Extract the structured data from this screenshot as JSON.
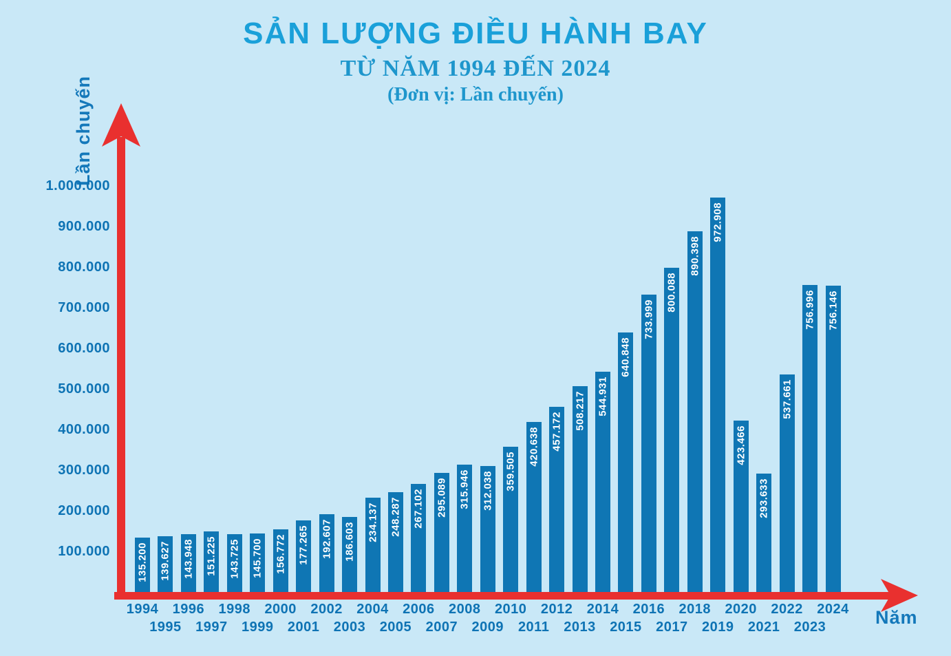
{
  "header": {
    "title": "SẢN LƯỢNG ĐIỀU HÀNH BAY",
    "subtitle": "TỪ NĂM 1994 ĐẾN 2024",
    "unit": "(Đơn vị: Lần chuyến)"
  },
  "axes": {
    "y_label": "Lần chuyến",
    "x_label": "Năm"
  },
  "colors": {
    "background": "#c9e8f7",
    "bar": "#0f76b4",
    "axis_red": "#e9302f",
    "title": "#1aa0d9",
    "subtitle": "#1e96cc",
    "tick_label": "#0e73b4",
    "axis_label": "#1478ba",
    "bar_value_text": "#ffffff"
  },
  "chart_data": {
    "type": "bar",
    "title": "SẢN LƯỢNG ĐIỀU HÀNH BAY TỪ NĂM 1994 ĐẾN 2024",
    "unit": "Lần chuyến",
    "xlabel": "Năm",
    "ylabel": "Lần chuyến",
    "ylim": [
      0,
      1000000
    ],
    "grid": false,
    "legend": "none",
    "categories": [
      1994,
      1995,
      1996,
      1997,
      1998,
      1999,
      2000,
      2001,
      2002,
      2003,
      2004,
      2005,
      2006,
      2007,
      2008,
      2009,
      2010,
      2011,
      2012,
      2013,
      2014,
      2015,
      2016,
      2017,
      2018,
      2019,
      2020,
      2021,
      2022,
      2023,
      2024
    ],
    "values": [
      135200,
      139627,
      143948,
      151225,
      143725,
      145700,
      156772,
      177265,
      192607,
      186603,
      234137,
      248287,
      267102,
      295089,
      315946,
      312038,
      359505,
      420638,
      457172,
      508217,
      544931,
      640848,
      733999,
      800088,
      890398,
      972908,
      423466,
      293633,
      537661,
      756996,
      756146
    ],
    "value_labels": [
      "135.200",
      "139.627",
      "143.948",
      "151.225",
      "143.725",
      "145.700",
      "156.772",
      "177.265",
      "192.607",
      "186.603",
      "234.137",
      "248.287",
      "267.102",
      "295.089",
      "315.946",
      "312.038",
      "359.505",
      "420.638",
      "457.172",
      "508.217",
      "544.931",
      "640.848",
      "733.999",
      "800.088",
      "890.398",
      "972.908",
      "423.466",
      "293.633",
      "537.661",
      "756.996",
      "756.146"
    ],
    "y_tick_labels": [
      "100.000",
      "200.000",
      "300.000",
      "400.000",
      "500.000",
      "600.000",
      "700.000",
      "800.000",
      "900.000",
      "1.000.000"
    ]
  }
}
